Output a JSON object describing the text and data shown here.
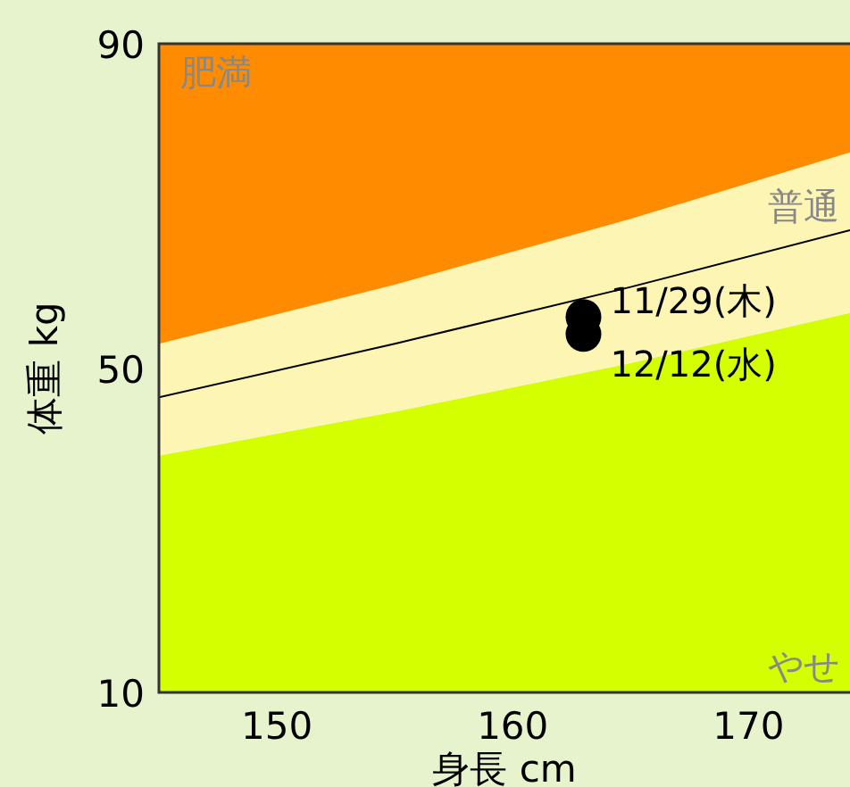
{
  "chart_data": {
    "type": "area",
    "stacked": true,
    "xlabel": "身長 cm",
    "ylabel": "体重 kg",
    "xlim": [
      145,
      174.3
    ],
    "ylim": [
      10,
      90
    ],
    "xticks": [
      150,
      160,
      170
    ],
    "yticks": [
      10,
      50,
      90
    ],
    "series": [
      {
        "name": "やせ",
        "color": "#d4ff00",
        "x": [
          145,
          155,
          165,
          174.3
        ],
        "values": [
          39.2,
          44.6,
          50.6,
          56.8
        ]
      },
      {
        "name": "普通",
        "color": "#fdf5b4",
        "x": [
          145,
          155,
          165,
          174.3
        ],
        "values": [
          13.8,
          15.7,
          17.8,
          19.8
        ]
      },
      {
        "name": "肥満",
        "color": "#ff8c00",
        "x": [
          145,
          155,
          165,
          174.3
        ],
        "values": [
          37.0,
          29.7,
          21.6,
          13.4
        ]
      },
      {
        "type": "line",
        "color": "#000000",
        "x": [
          145,
          155,
          165,
          174.3
        ],
        "values": [
          46.4,
          53.0,
          60.0,
          67.0
        ]
      },
      {
        "type": "scatter",
        "name": "11/29(木)",
        "color": "#000000",
        "marker": "circle",
        "x": [
          163
        ],
        "values": [
          56.3
        ]
      },
      {
        "type": "scatter",
        "name": "12/12(水)",
        "color": "#000000",
        "marker": "circle",
        "x": [
          163
        ],
        "values": [
          54.2
        ]
      }
    ]
  }
}
